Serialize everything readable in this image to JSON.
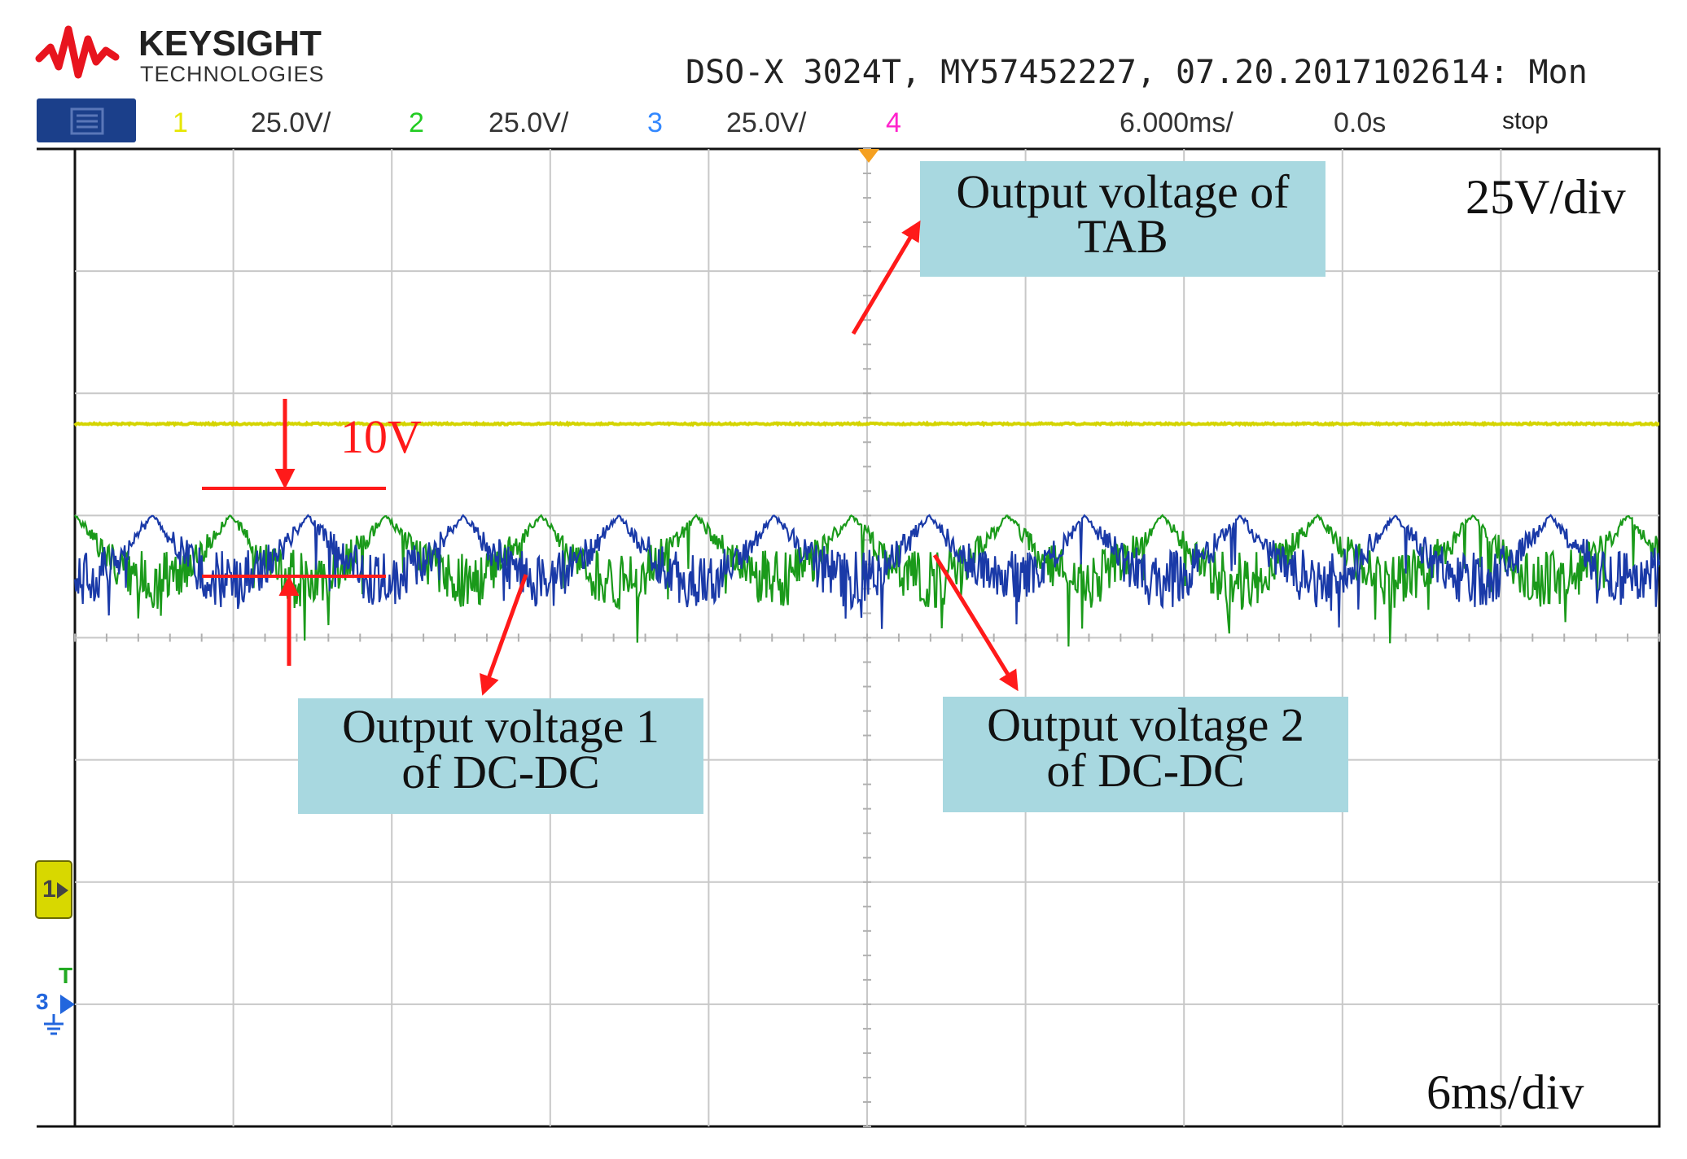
{
  "header": {
    "brand": "KEYSIGHT",
    "brand_sub": "TECHNOLOGIES",
    "instrument_info": "DSO-X 3024T, MY57452227, 07.20.2017102614: Mon",
    "channels": [
      {
        "num": "1",
        "scale": "25.0V/",
        "color": "#e6e600"
      },
      {
        "num": "2",
        "scale": "25.0V/",
        "color": "#22cc22"
      },
      {
        "num": "3",
        "scale": "25.0V/",
        "color": "#3388ff"
      },
      {
        "num": "4",
        "color": "#ff22cc"
      }
    ],
    "timebase": "6.000ms/",
    "delay": "0.0s",
    "run_state": "stop",
    "menu_icon": "menu-icon"
  },
  "annotations": {
    "volt_div": "25V/div",
    "time_div": "6ms/div",
    "ripple_label": "10V",
    "tab_label_1": "Output voltage of",
    "tab_label_2": "TAB",
    "dc1_label_1": "Output voltage 1",
    "dc1_label_2": "of DC-DC",
    "dc2_label_1": "Output voltage 2",
    "dc2_label_2": "of DC-DC",
    "label_box_color": "#a8d8e0",
    "arrow_color": "#ff1a1a"
  },
  "markers": {
    "ch1_ground": "1",
    "ch3_ground": "3",
    "trigger_letter": "T"
  },
  "chart_data": {
    "type": "line",
    "title": "",
    "xlabel": "",
    "ylabel": "",
    "grid": true,
    "x_divisions": 10,
    "y_divisions": 8,
    "xlim_ms": [
      -30,
      30
    ],
    "ylim_div": [
      -4,
      4
    ],
    "series": [
      {
        "name": "Output voltage of TAB",
        "channel": 1,
        "color": "#d4d400",
        "level_div": 1.75,
        "ripple_div": 0.02
      },
      {
        "name": "Output voltage 1 of DC-DC",
        "channel": 2,
        "color": "#1a9a1a",
        "level_div": 0.95,
        "ripple_div": 0.4
      },
      {
        "name": "Output voltage 2 of DC-DC",
        "channel": 3,
        "color": "#1a3aa8",
        "level_div": 0.95,
        "ripple_div": 0.4
      }
    ],
    "ripple_annotation_volts": 10
  }
}
